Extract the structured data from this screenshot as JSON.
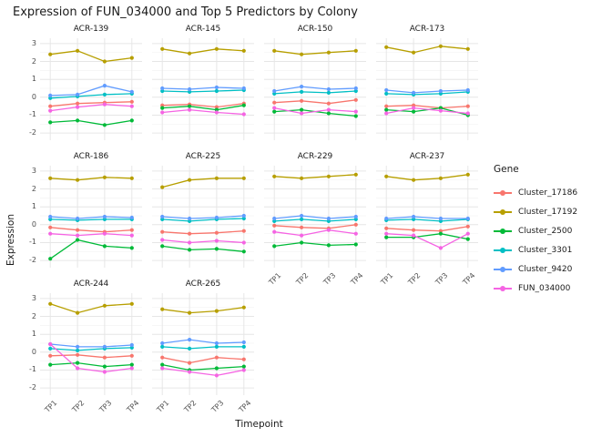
{
  "title": "Expression of FUN_034000 and Top 5 Predictors by Colony",
  "x_axis": {
    "label": "Timepoint",
    "ticks": [
      "TP1",
      "TP2",
      "TP3",
      "TP4"
    ]
  },
  "y_axis": {
    "label": "Expression",
    "ticks": [
      "3",
      "2",
      "1",
      "0",
      "-1",
      "-2"
    ],
    "range": [
      -2.4,
      3.3
    ]
  },
  "legend": {
    "title": "Gene",
    "entries": [
      {
        "label": "Cluster_17186",
        "color": "#F8766D"
      },
      {
        "label": "Cluster_17192",
        "color": "#B79F00"
      },
      {
        "label": "Cluster_2500",
        "color": "#00BA38"
      },
      {
        "label": "Cluster_3301",
        "color": "#00BFC4"
      },
      {
        "label": "Cluster_9420",
        "color": "#619CFF"
      },
      {
        "label": "FUN_034000",
        "color": "#F564E3"
      }
    ]
  },
  "chart_data": {
    "type": "line",
    "x": [
      "TP1",
      "TP2",
      "TP3",
      "TP4"
    ],
    "xlabel": "Timepoint",
    "ylabel": "Expression",
    "ylim": [
      -2.4,
      3.3
    ],
    "grid": true,
    "legend_position": "right",
    "facets": [
      {
        "name": "ACR-139",
        "series": {
          "Cluster_17186": [
            -0.5,
            -0.35,
            -0.3,
            -0.25
          ],
          "Cluster_17192": [
            2.4,
            2.6,
            2.0,
            2.2
          ],
          "Cluster_2500": [
            -1.4,
            -1.3,
            -1.55,
            -1.3
          ],
          "Cluster_3301": [
            -0.05,
            0.05,
            0.15,
            0.2
          ],
          "Cluster_9420": [
            0.1,
            0.15,
            0.65,
            0.3
          ],
          "FUN_034000": [
            -0.75,
            -0.55,
            -0.4,
            -0.5
          ]
        }
      },
      {
        "name": "ACR-145",
        "series": {
          "Cluster_17186": [
            -0.45,
            -0.4,
            -0.55,
            -0.35
          ],
          "Cluster_17192": [
            2.7,
            2.45,
            2.7,
            2.6
          ],
          "Cluster_2500": [
            -0.6,
            -0.5,
            -0.7,
            -0.45
          ],
          "Cluster_3301": [
            0.35,
            0.3,
            0.35,
            0.4
          ],
          "Cluster_9420": [
            0.5,
            0.45,
            0.55,
            0.5
          ],
          "FUN_034000": [
            -0.85,
            -0.7,
            -0.85,
            -0.95
          ]
        }
      },
      {
        "name": "ACR-150",
        "series": {
          "Cluster_17186": [
            -0.3,
            -0.2,
            -0.35,
            -0.15
          ],
          "Cluster_17192": [
            2.6,
            2.4,
            2.5,
            2.6
          ],
          "Cluster_2500": [
            -0.8,
            -0.7,
            -0.9,
            -1.05
          ],
          "Cluster_3301": [
            0.2,
            0.3,
            0.25,
            0.35
          ],
          "Cluster_9420": [
            0.35,
            0.6,
            0.45,
            0.5
          ],
          "FUN_034000": [
            -0.6,
            -0.9,
            -0.7,
            -0.8
          ]
        }
      },
      {
        "name": "ACR-173",
        "series": {
          "Cluster_17186": [
            -0.5,
            -0.45,
            -0.6,
            -0.5
          ],
          "Cluster_17192": [
            2.8,
            2.5,
            2.85,
            2.7
          ],
          "Cluster_2500": [
            -0.7,
            -0.8,
            -0.6,
            -1.0
          ],
          "Cluster_3301": [
            0.2,
            0.15,
            0.2,
            0.3
          ],
          "Cluster_9420": [
            0.4,
            0.25,
            0.35,
            0.4
          ],
          "FUN_034000": [
            -0.9,
            -0.6,
            -0.75,
            -0.9
          ]
        }
      },
      {
        "name": "ACR-186",
        "series": {
          "Cluster_17186": [
            -0.15,
            -0.3,
            -0.4,
            -0.3
          ],
          "Cluster_17192": [
            2.6,
            2.5,
            2.65,
            2.6
          ],
          "Cluster_2500": [
            -1.9,
            -0.85,
            -1.2,
            -1.3
          ],
          "Cluster_3301": [
            0.3,
            0.25,
            0.3,
            0.3
          ],
          "Cluster_9420": [
            0.45,
            0.35,
            0.45,
            0.4
          ],
          "FUN_034000": [
            -0.5,
            -0.6,
            -0.5,
            -0.6
          ]
        }
      },
      {
        "name": "ACR-225",
        "series": {
          "Cluster_17186": [
            -0.4,
            -0.5,
            -0.45,
            -0.35
          ],
          "Cluster_17192": [
            2.1,
            2.5,
            2.6,
            2.6
          ],
          "Cluster_2500": [
            -1.2,
            -1.4,
            -1.35,
            -1.5
          ],
          "Cluster_3301": [
            0.3,
            0.2,
            0.3,
            0.35
          ],
          "Cluster_9420": [
            0.45,
            0.35,
            0.4,
            0.5
          ],
          "FUN_034000": [
            -0.85,
            -1.0,
            -0.9,
            -1.0
          ]
        }
      },
      {
        "name": "ACR-229",
        "series": {
          "Cluster_17186": [
            -0.05,
            -0.15,
            -0.2,
            0.0
          ],
          "Cluster_17192": [
            2.7,
            2.6,
            2.7,
            2.8
          ],
          "Cluster_2500": [
            -1.2,
            -1.0,
            -1.15,
            -1.1
          ],
          "Cluster_3301": [
            0.2,
            0.3,
            0.2,
            0.3
          ],
          "Cluster_9420": [
            0.35,
            0.5,
            0.35,
            0.45
          ],
          "FUN_034000": [
            -0.4,
            -0.6,
            -0.3,
            -0.5
          ]
        }
      },
      {
        "name": "ACR-237",
        "series": {
          "Cluster_17186": [
            -0.2,
            -0.3,
            -0.35,
            -0.1
          ],
          "Cluster_17192": [
            2.7,
            2.5,
            2.6,
            2.8
          ],
          "Cluster_2500": [
            -0.7,
            -0.7,
            -0.5,
            -0.8
          ],
          "Cluster_3301": [
            0.25,
            0.3,
            0.2,
            0.3
          ],
          "Cluster_9420": [
            0.35,
            0.45,
            0.35,
            0.35
          ],
          "FUN_034000": [
            -0.5,
            -0.6,
            -1.3,
            -0.5
          ]
        }
      },
      {
        "name": "ACR-244",
        "series": {
          "Cluster_17186": [
            -0.2,
            -0.15,
            -0.3,
            -0.2
          ],
          "Cluster_17192": [
            2.7,
            2.2,
            2.6,
            2.7
          ],
          "Cluster_2500": [
            -0.7,
            -0.6,
            -0.8,
            -0.7
          ],
          "Cluster_3301": [
            0.2,
            0.1,
            0.2,
            0.25
          ],
          "Cluster_9420": [
            0.45,
            0.3,
            0.3,
            0.4
          ],
          "FUN_034000": [
            0.45,
            -0.9,
            -1.1,
            -0.9
          ]
        }
      },
      {
        "name": "ACR-265",
        "series": {
          "Cluster_17186": [
            -0.3,
            -0.6,
            -0.3,
            -0.4
          ],
          "Cluster_17192": [
            2.4,
            2.2,
            2.3,
            2.5
          ],
          "Cluster_2500": [
            -0.7,
            -1.0,
            -0.9,
            -0.8
          ],
          "Cluster_3301": [
            0.3,
            0.2,
            0.3,
            0.3
          ],
          "Cluster_9420": [
            0.5,
            0.7,
            0.5,
            0.55
          ],
          "FUN_034000": [
            -0.9,
            -1.1,
            -1.3,
            -1.0
          ]
        }
      }
    ]
  }
}
